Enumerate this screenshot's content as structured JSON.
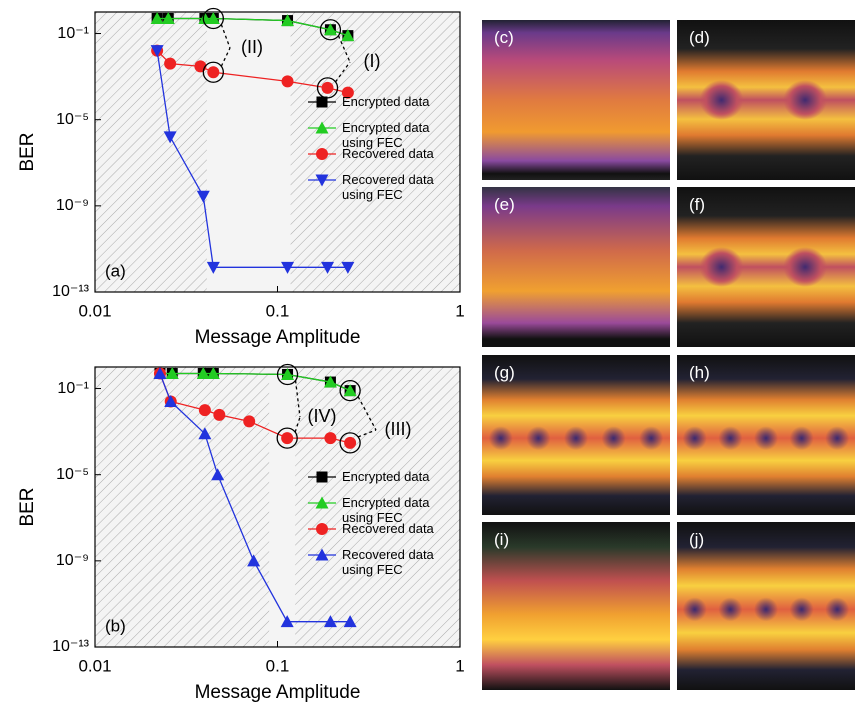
{
  "chart_data": [
    {
      "type": "line",
      "x_label": "Message Amplitude",
      "y_label": "BER",
      "panel_label": "(a)",
      "annotations": [
        "(I)",
        "(II)"
      ],
      "xlog": true,
      "ylog": true,
      "xlim": [
        0.01,
        1
      ],
      "ylim": [
        1e-13,
        1
      ],
      "xticks": [
        0.01,
        0.1,
        1
      ],
      "yticks": [
        {
          "value": 1e-13,
          "label": "10⁻¹³"
        },
        {
          "value": 1e-09,
          "label": "10⁻⁹"
        },
        {
          "value": 1e-05,
          "label": "10⁻⁵"
        },
        {
          "value": 0.1,
          "label": "10⁻¹"
        }
      ],
      "shaded_ranges": [
        [
          0.01,
          0.041
        ],
        [
          0.118,
          1
        ]
      ],
      "legend": "center right",
      "series": [
        {
          "name": "Encrypted data",
          "color": "#000000",
          "marker": "square",
          "x": [
            0.0219,
            0.0252,
            0.04,
            0.0445,
            0.1135,
            0.195,
            0.243
          ],
          "values": [
            0.5,
            0.5,
            0.5,
            0.5,
            0.4,
            0.15,
            0.08
          ]
        },
        {
          "name": "Encrypted data using FEC",
          "color": "#22cc22",
          "marker": "triangle-up",
          "x": [
            0.0219,
            0.0252,
            0.04,
            0.0445,
            0.1135,
            0.195,
            0.243
          ],
          "values": [
            0.5,
            0.5,
            0.5,
            0.5,
            0.4,
            0.15,
            0.08
          ]
        },
        {
          "name": "Recovered data",
          "color": "#ee2222",
          "marker": "circle",
          "x": [
            0.0219,
            0.0258,
            0.0378,
            0.0445,
            0.1135,
            0.188,
            0.243
          ],
          "values": [
            0.016,
            0.004,
            0.003,
            0.0016,
            0.0006,
            0.0003,
            0.00018
          ]
        },
        {
          "name": "Recovered data using FEC",
          "color": "#2233dd",
          "marker": "triangle-down",
          "x": [
            0.0219,
            0.0258,
            0.0392,
            0.0445,
            0.1135,
            0.188,
            0.243
          ],
          "values": [
            0.016,
            1.6e-06,
            2.8e-09,
            1.4e-12,
            1.4e-12,
            1.4e-12,
            1.4e-12
          ]
        }
      ]
    },
    {
      "type": "line",
      "x_label": "Message Amplitude",
      "y_label": "BER",
      "panel_label": "(b)",
      "annotations": [
        "(III)",
        "(IV)"
      ],
      "xlog": true,
      "ylog": true,
      "xlim": [
        0.01,
        1
      ],
      "ylim": [
        1e-13,
        1
      ],
      "xticks": [
        0.01,
        0.1,
        1
      ],
      "yticks": [
        {
          "value": 1e-13,
          "label": "10⁻¹³"
        },
        {
          "value": 1e-09,
          "label": "10⁻⁹"
        },
        {
          "value": 1e-05,
          "label": "10⁻⁵"
        },
        {
          "value": 0.1,
          "label": "10⁻¹"
        }
      ],
      "shaded_ranges": [
        [
          0.01,
          0.09
        ],
        [
          0.125,
          1
        ]
      ],
      "legend": "lower right",
      "series": [
        {
          "name": "Encrypted data",
          "color": "#000000",
          "marker": "square",
          "x": [
            0.0227,
            0.0265,
            0.0392,
            0.0445,
            0.1135,
            0.195,
            0.25
          ],
          "values": [
            0.5,
            0.5,
            0.5,
            0.5,
            0.45,
            0.2,
            0.08
          ]
        },
        {
          "name": "Encrypted data using FEC",
          "color": "#22cc22",
          "marker": "triangle-up",
          "x": [
            0.0227,
            0.0265,
            0.0392,
            0.0445,
            0.1135,
            0.195,
            0.25
          ],
          "values": [
            0.5,
            0.5,
            0.5,
            0.5,
            0.45,
            0.2,
            0.08
          ]
        },
        {
          "name": "Recovered data",
          "color": "#ee2222",
          "marker": "circle",
          "x": [
            0.0227,
            0.026,
            0.04,
            0.048,
            0.07,
            0.113,
            0.195,
            0.25
          ],
          "values": [
            0.5,
            0.025,
            0.01,
            0.006,
            0.003,
            0.0005,
            0.0005,
            0.0003
          ]
        },
        {
          "name": "Recovered data using FEC",
          "color": "#2233dd",
          "marker": "triangle-up",
          "x": [
            0.0227,
            0.026,
            0.04,
            0.047,
            0.074,
            0.113,
            0.195,
            0.25
          ],
          "values": [
            0.5,
            0.025,
            0.0008,
            1e-05,
            1e-09,
            1.5e-12,
            1.5e-12,
            1.5e-12
          ]
        }
      ]
    }
  ],
  "panels": [
    {
      "label": "(c)"
    },
    {
      "label": "(d)"
    },
    {
      "label": "(e)"
    },
    {
      "label": "(f)"
    },
    {
      "label": "(g)"
    },
    {
      "label": "(h)"
    },
    {
      "label": "(i)"
    },
    {
      "label": "(j)"
    }
  ]
}
